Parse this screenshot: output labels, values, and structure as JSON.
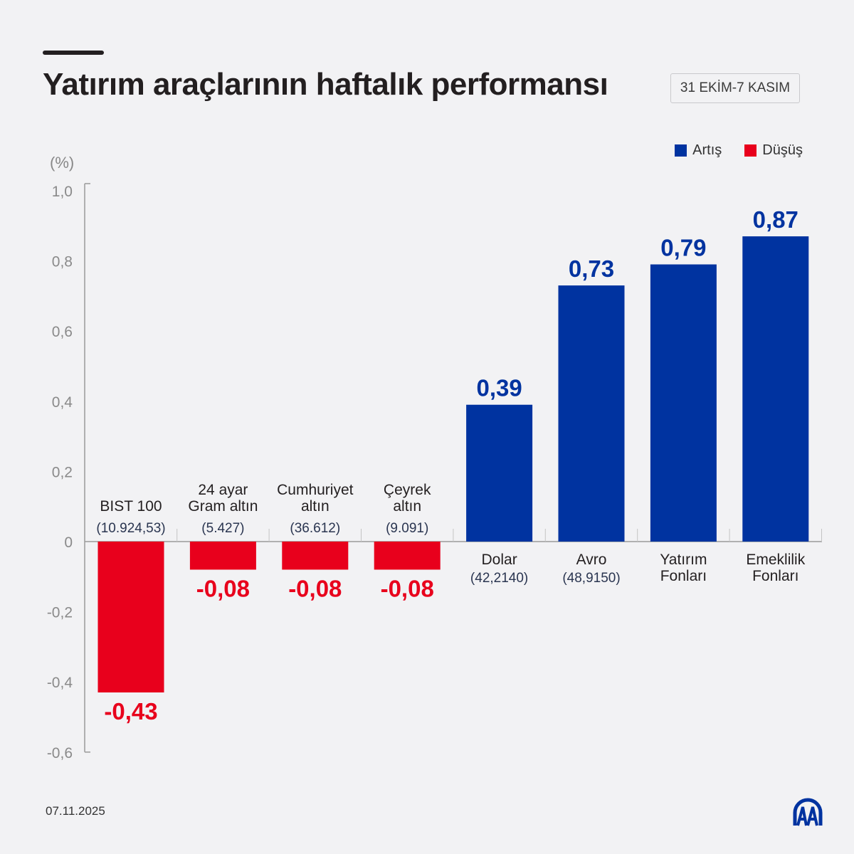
{
  "header": {
    "title": "Yatırım araçlarının haftalık performansı",
    "date_range": "31 EKİM-7 KASIM"
  },
  "footer": {
    "date": "07.11.2025",
    "logo_text": "AA"
  },
  "colors": {
    "increase": "#0033a0",
    "decrease": "#e8001c",
    "axis": "#9a9a9a",
    "text": "#231f20"
  },
  "chart_data": {
    "type": "bar",
    "ylabel": "(%)",
    "ylim": [
      -0.6,
      1.0
    ],
    "yticks": [
      "1,0",
      "0,8",
      "0,6",
      "0,4",
      "0,2",
      "0",
      "-0,2",
      "-0,4",
      "-0,6"
    ],
    "ytick_values": [
      1.0,
      0.8,
      0.6,
      0.4,
      0.2,
      0,
      -0.2,
      -0.4,
      -0.6
    ],
    "grid": false,
    "legend": {
      "position": "top-right",
      "entries": [
        "Artış",
        "Düşüş"
      ]
    },
    "categories": [
      {
        "name": [
          "BIST 100"
        ],
        "sub": "(10.924,53)",
        "value": -0.43,
        "label": "-0,43"
      },
      {
        "name": [
          "24 ayar",
          "Gram altın"
        ],
        "sub": "(5.427)",
        "value": -0.08,
        "label": "-0,08"
      },
      {
        "name": [
          "Cumhuriyet",
          "altın"
        ],
        "sub": "(36.612)",
        "value": -0.08,
        "label": "-0,08"
      },
      {
        "name": [
          "Çeyrek",
          "altın"
        ],
        "sub": "(9.091)",
        "value": -0.08,
        "label": "-0,08"
      },
      {
        "name": [
          "Dolar"
        ],
        "sub": "(42,2140)",
        "value": 0.39,
        "label": "0,39"
      },
      {
        "name": [
          "Avro"
        ],
        "sub": "(48,9150)",
        "value": 0.73,
        "label": "0,73"
      },
      {
        "name": [
          "Yatırım",
          "Fonları"
        ],
        "sub": "",
        "value": 0.79,
        "label": "0,79"
      },
      {
        "name": [
          "Emeklilik",
          "Fonları"
        ],
        "sub": "",
        "value": 0.87,
        "label": "0,87"
      }
    ]
  }
}
